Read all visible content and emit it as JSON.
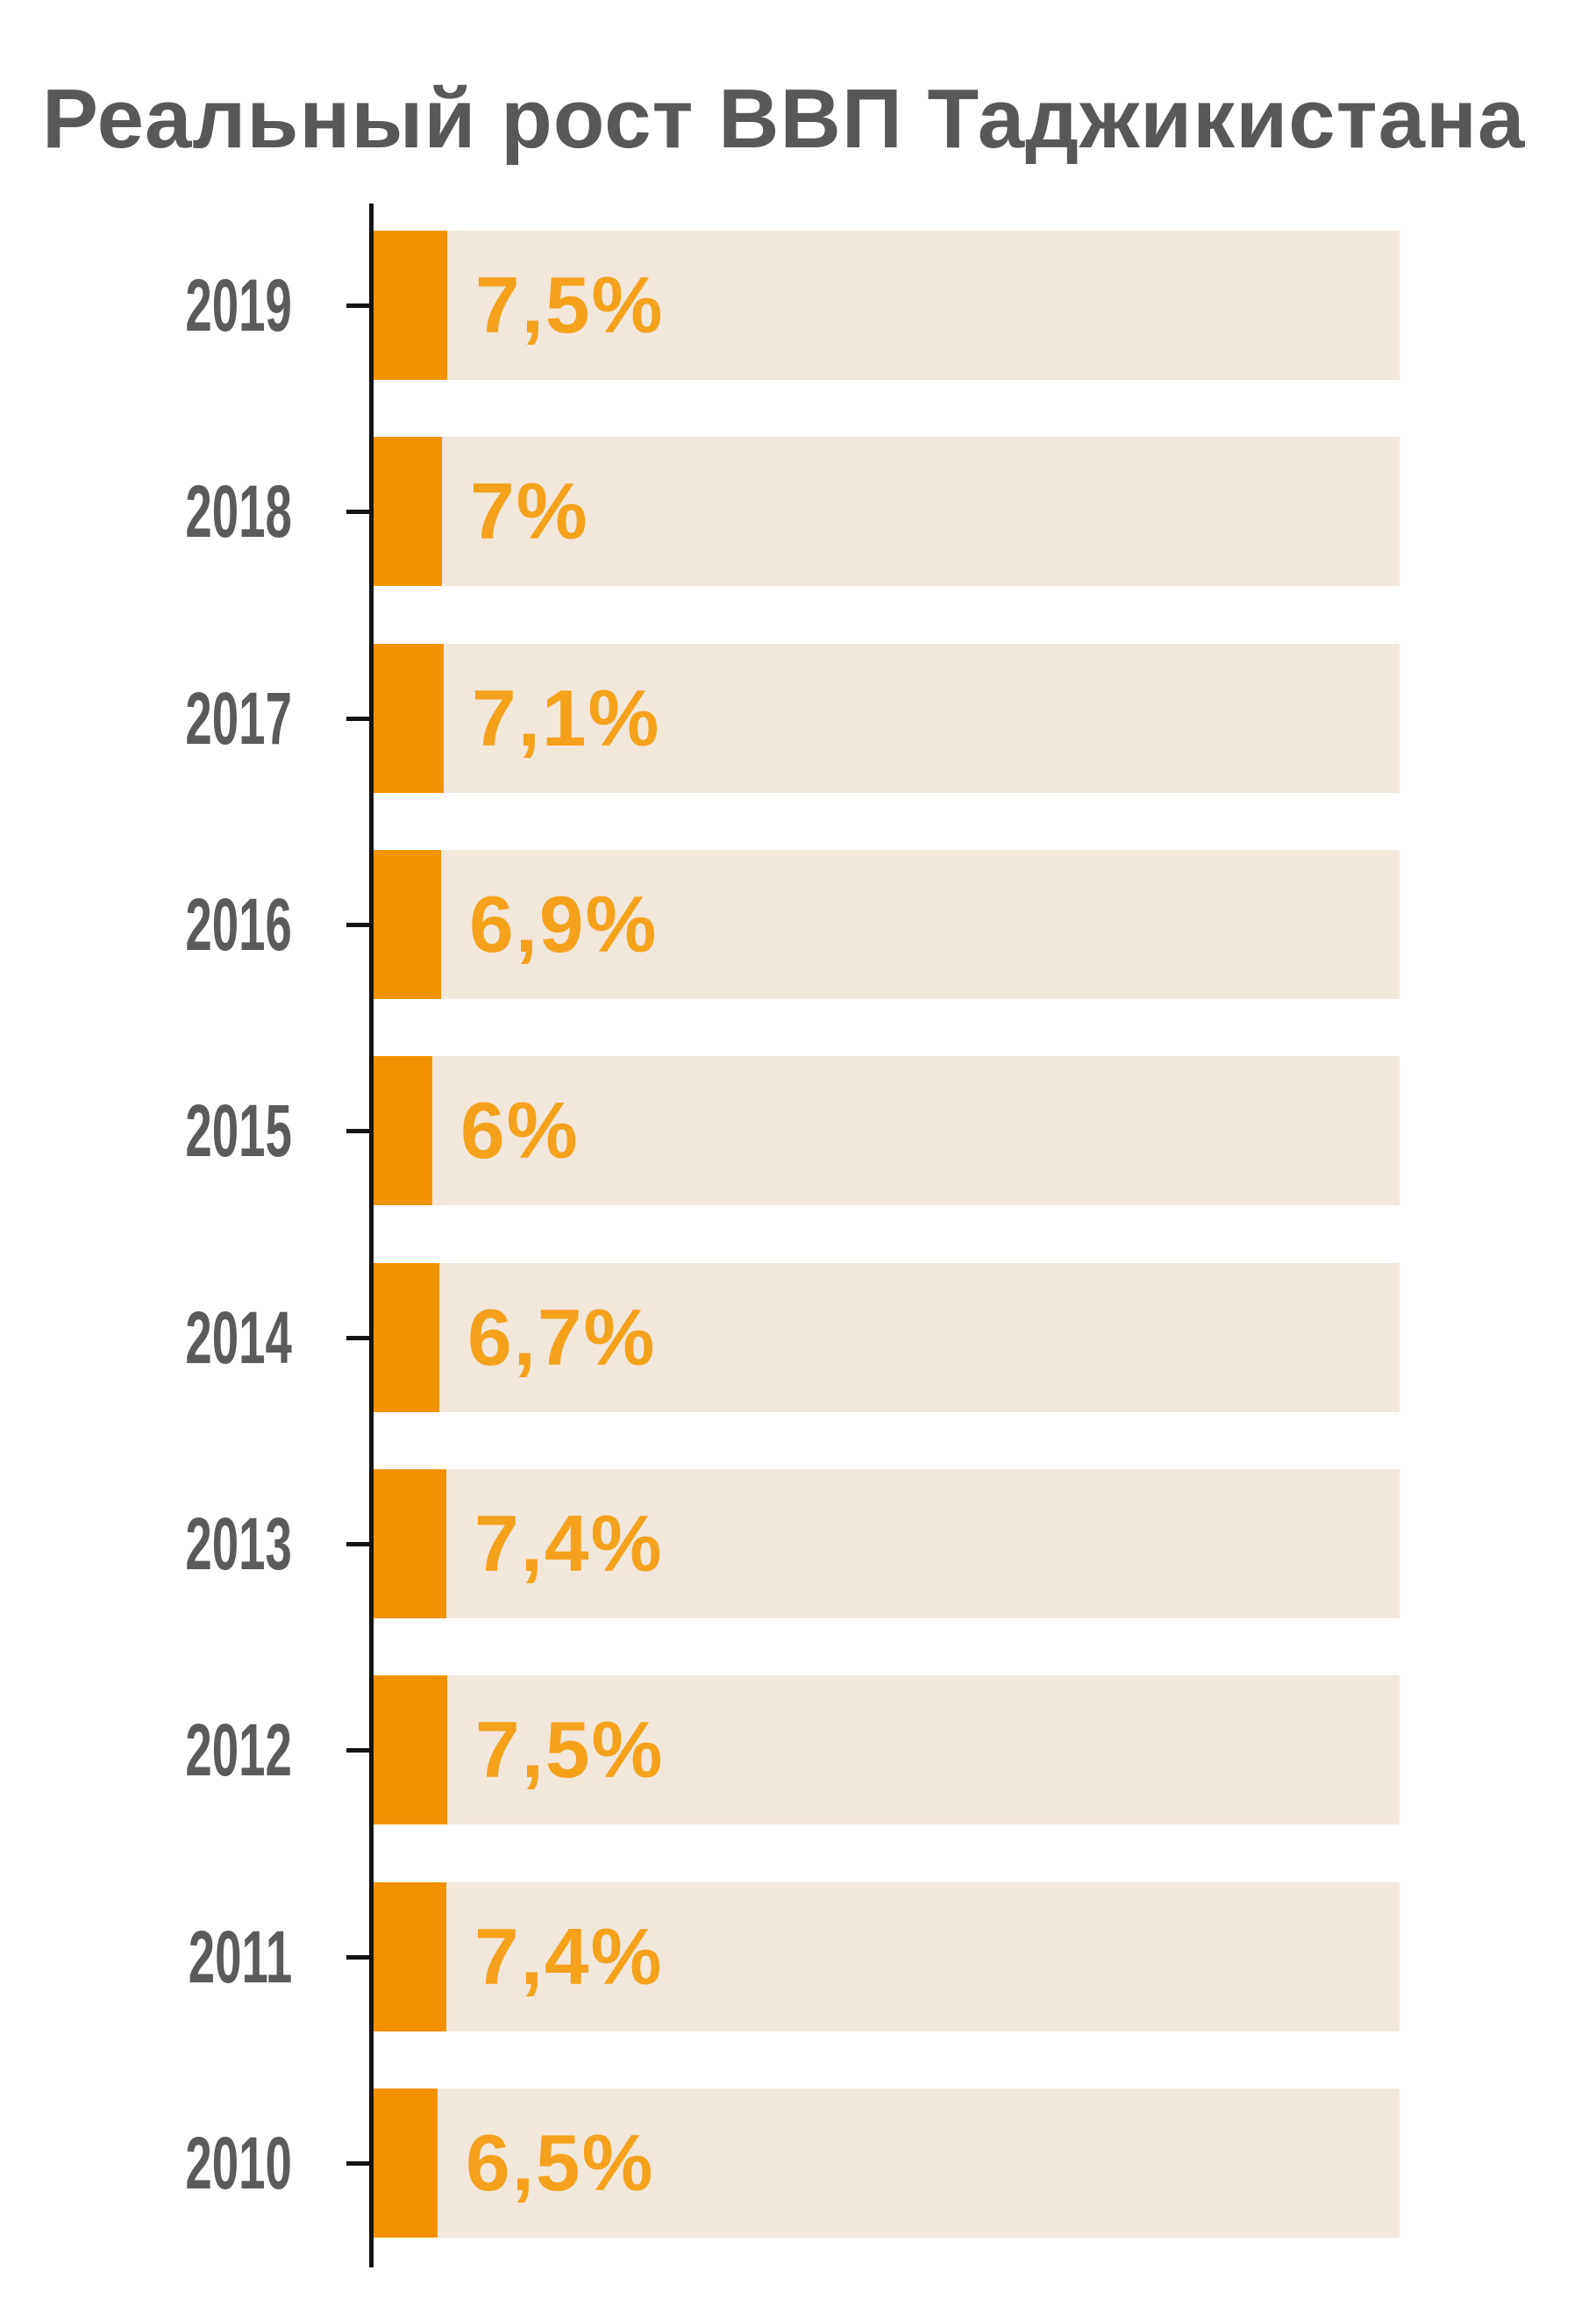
{
  "title": "Реальный рост ВВП Таджикистана",
  "colors": {
    "title_text": "#58585A",
    "year_text": "#5B5B5D",
    "axis": "#141414",
    "track": "#F2E7DB",
    "bar": "#F39200",
    "value_label": "#F5A11C"
  },
  "chart_data": {
    "type": "bar",
    "orientation": "horizontal",
    "title": "Реальный рост ВВП Таджикистана",
    "categories": [
      "2019",
      "2018",
      "2017",
      "2016",
      "2015",
      "2014",
      "2013",
      "2012",
      "2011",
      "2010"
    ],
    "values": [
      7.5,
      7,
      7.1,
      6.9,
      6,
      6.7,
      7.4,
      7.5,
      7.4,
      6.5
    ],
    "value_labels": [
      "7,5%",
      "7%",
      "7,1%",
      "6,9%",
      "6%",
      "6,7%",
      "7,4%",
      "7,5%",
      "7,4%",
      "6,5%"
    ],
    "unit": "%",
    "grid": false,
    "legend": false,
    "axis_tick_labels_side": "left",
    "track_is_decorative_full_width": true
  }
}
